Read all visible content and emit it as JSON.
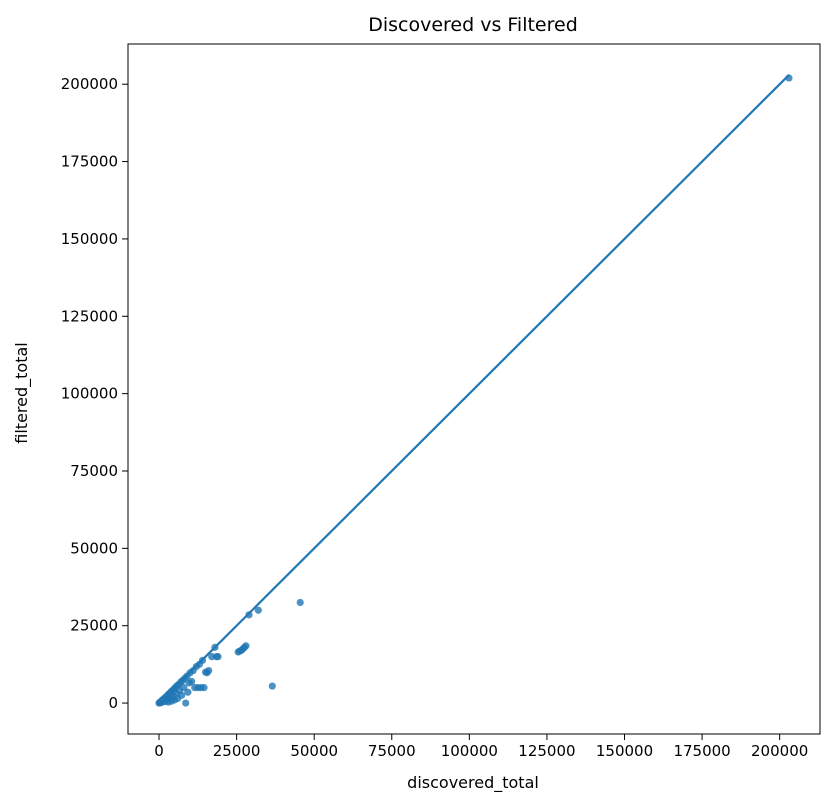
{
  "chart_data": {
    "type": "scatter",
    "title": "Discovered vs Filtered",
    "xlabel": "discovered_total",
    "ylabel": "filtered_total",
    "xlim": [
      -10000,
      213000
    ],
    "ylim": [
      -10000,
      213000
    ],
    "xticks": [
      0,
      25000,
      50000,
      75000,
      100000,
      125000,
      150000,
      175000,
      200000
    ],
    "yticks": [
      0,
      25000,
      50000,
      75000,
      100000,
      125000,
      150000,
      175000,
      200000
    ],
    "xtick_labels": [
      "0",
      "25000",
      "50000",
      "75000",
      "100000",
      "125000",
      "150000",
      "175000",
      "200000"
    ],
    "ytick_labels": [
      "0",
      "25000",
      "50000",
      "75000",
      "100000",
      "125000",
      "150000",
      "175000",
      "200000"
    ],
    "grid": false,
    "marker_color": "#1f77b4",
    "reference_line": {
      "from": [
        0,
        0
      ],
      "to": [
        203000,
        203000
      ],
      "color": "#1f77b4"
    },
    "points": [
      {
        "x": 0,
        "y": 0
      },
      {
        "x": 200,
        "y": 150
      },
      {
        "x": 400,
        "y": 350
      },
      {
        "x": 600,
        "y": 100
      },
      {
        "x": 800,
        "y": 700
      },
      {
        "x": 1000,
        "y": 300
      },
      {
        "x": 1200,
        "y": 1100
      },
      {
        "x": 1500,
        "y": 800
      },
      {
        "x": 1800,
        "y": 1600
      },
      {
        "x": 2000,
        "y": 500
      },
      {
        "x": 2200,
        "y": 2000
      },
      {
        "x": 2500,
        "y": 1200
      },
      {
        "x": 2800,
        "y": 2600
      },
      {
        "x": 3000,
        "y": 300
      },
      {
        "x": 3200,
        "y": 3000
      },
      {
        "x": 3500,
        "y": 1800
      },
      {
        "x": 3800,
        "y": 3500
      },
      {
        "x": 4000,
        "y": 600
      },
      {
        "x": 4200,
        "y": 4000
      },
      {
        "x": 4500,
        "y": 2400
      },
      {
        "x": 4800,
        "y": 4500
      },
      {
        "x": 5000,
        "y": 1000
      },
      {
        "x": 5200,
        "y": 5000
      },
      {
        "x": 5500,
        "y": 3000
      },
      {
        "x": 5800,
        "y": 5600
      },
      {
        "x": 6000,
        "y": 1500
      },
      {
        "x": 6300,
        "y": 6000
      },
      {
        "x": 6600,
        "y": 4000
      },
      {
        "x": 7000,
        "y": 6800
      },
      {
        "x": 7300,
        "y": 2500
      },
      {
        "x": 7600,
        "y": 7300
      },
      {
        "x": 8000,
        "y": 5000
      },
      {
        "x": 8300,
        "y": 8000
      },
      {
        "x": 8600,
        "y": 0
      },
      {
        "x": 9000,
        "y": 8700
      },
      {
        "x": 9300,
        "y": 3500
      },
      {
        "x": 9700,
        "y": 6500
      },
      {
        "x": 10000,
        "y": 9800
      },
      {
        "x": 10500,
        "y": 7000
      },
      {
        "x": 11000,
        "y": 10500
      },
      {
        "x": 11500,
        "y": 5000
      },
      {
        "x": 12000,
        "y": 11800
      },
      {
        "x": 12500,
        "y": 5000
      },
      {
        "x": 13000,
        "y": 12500
      },
      {
        "x": 13500,
        "y": 5000
      },
      {
        "x": 14000,
        "y": 13800
      },
      {
        "x": 14500,
        "y": 5000
      },
      {
        "x": 15000,
        "y": 10000
      },
      {
        "x": 15500,
        "y": 9800
      },
      {
        "x": 16000,
        "y": 10500
      },
      {
        "x": 17000,
        "y": 15000
      },
      {
        "x": 18000,
        "y": 18000
      },
      {
        "x": 18500,
        "y": 15000
      },
      {
        "x": 19000,
        "y": 15000
      },
      {
        "x": 25500,
        "y": 16500
      },
      {
        "x": 26000,
        "y": 16800
      },
      {
        "x": 26500,
        "y": 17000
      },
      {
        "x": 27000,
        "y": 17500
      },
      {
        "x": 27500,
        "y": 18000
      },
      {
        "x": 28000,
        "y": 18500
      },
      {
        "x": 29000,
        "y": 28500
      },
      {
        "x": 32000,
        "y": 30000
      },
      {
        "x": 36500,
        "y": 5500
      },
      {
        "x": 45500,
        "y": 32500
      },
      {
        "x": 203000,
        "y": 202000
      }
    ]
  }
}
